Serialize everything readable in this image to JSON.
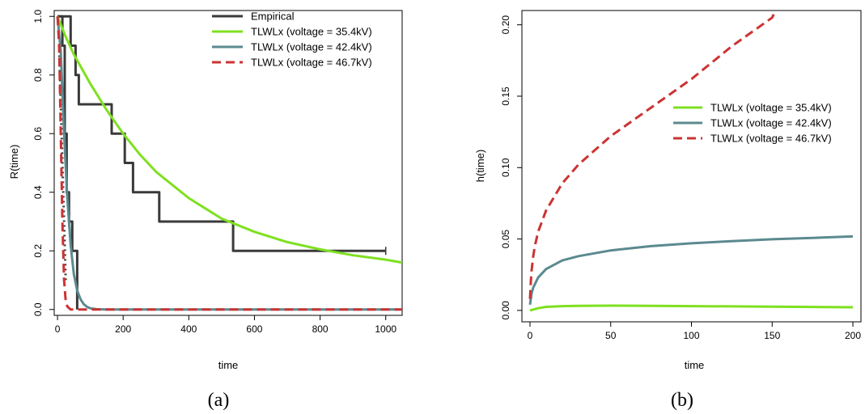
{
  "colors": {
    "empirical": "#3a3a3a",
    "v354": "#7fe020",
    "v424": "#5b8a8f",
    "v467": "#cc3333",
    "axis": "#000000"
  },
  "chart_data": [
    {
      "type": "line",
      "caption": "(a)",
      "xlabel": "time",
      "ylabel": "R(time)",
      "xlim": [
        -10,
        1050
      ],
      "ylim": [
        -0.02,
        1.02
      ],
      "xticks": [
        0,
        200,
        400,
        600,
        800,
        1000
      ],
      "yticks": [
        0.0,
        0.2,
        0.4,
        0.6,
        0.8,
        1.0
      ],
      "ytick_labels": [
        "0.0",
        "0.2",
        "0.4",
        "0.6",
        "0.8",
        "1.0"
      ],
      "legend_position": "top-right",
      "legend": [
        "Empirical",
        "TLWLx (voltage = 35.4kV)",
        "TLWLx (voltage = 42.4kV)",
        "TLWLx (voltage = 46.7kV)"
      ],
      "series": [
        {
          "name": "Empirical",
          "style": "step",
          "color": "#3a3a3a",
          "x": [
            0,
            40,
            40,
            55,
            55,
            65,
            65,
            75,
            75,
            165,
            165,
            205,
            205,
            230,
            230,
            310,
            310,
            535,
            535,
            1000
          ],
          "y": [
            1.0,
            1.0,
            0.9,
            0.9,
            0.8,
            0.8,
            0.7,
            0.7,
            0.7,
            0.7,
            0.6,
            0.6,
            0.5,
            0.5,
            0.4,
            0.4,
            0.3,
            0.3,
            0.2,
            0.2
          ]
        },
        {
          "name": "Empirical",
          "style": "step",
          "color": "#3a3a3a",
          "x": [
            0,
            15,
            15,
            22,
            22,
            28,
            28,
            35,
            35,
            45,
            45,
            55,
            55,
            60,
            60
          ],
          "y": [
            1.0,
            1.0,
            0.9,
            0.9,
            0.6,
            0.6,
            0.4,
            0.4,
            0.3,
            0.3,
            0.2,
            0.2,
            0.2,
            0.2,
            0.0
          ]
        },
        {
          "name": "Empirical",
          "style": "dotted",
          "color": "#3a3a3a",
          "x": [
            5,
            10,
            15,
            20,
            25
          ],
          "y": [
            0.9,
            0.7,
            0.5,
            0.3,
            0.1
          ]
        },
        {
          "name": "TLWLx (voltage = 35.4kV)",
          "style": "solid",
          "color": "#7fe020",
          "x": [
            0,
            25,
            50,
            75,
            100,
            150,
            200,
            250,
            300,
            400,
            500,
            600,
            700,
            800,
            900,
            1000,
            1050
          ],
          "y": [
            1.0,
            0.93,
            0.87,
            0.82,
            0.77,
            0.68,
            0.6,
            0.53,
            0.47,
            0.38,
            0.31,
            0.265,
            0.23,
            0.205,
            0.185,
            0.17,
            0.16
          ]
        },
        {
          "name": "TLWLx (voltage = 42.4kV)",
          "style": "solid",
          "color": "#5b8a8f",
          "x": [
            0,
            10,
            20,
            30,
            40,
            50,
            60,
            70,
            80,
            90,
            100,
            120,
            150,
            1050
          ],
          "y": [
            1.0,
            0.88,
            0.6,
            0.38,
            0.22,
            0.12,
            0.065,
            0.035,
            0.018,
            0.009,
            0.004,
            0.001,
            0.0,
            0.0
          ]
        },
        {
          "name": "TLWLx (voltage = 46.7kV)",
          "style": "dashed",
          "color": "#cc3333",
          "x": [
            0,
            5,
            10,
            15,
            20,
            25,
            30,
            40,
            60,
            1050
          ],
          "y": [
            1.0,
            0.9,
            0.6,
            0.3,
            0.1,
            0.03,
            0.01,
            0.0,
            0.0,
            0.0
          ]
        }
      ]
    },
    {
      "type": "line",
      "caption": "(b)",
      "xlabel": "time",
      "ylabel": "h(time)",
      "xlim": [
        -5,
        205
      ],
      "ylim": [
        -0.008,
        0.21
      ],
      "xticks": [
        0,
        50,
        100,
        150,
        200
      ],
      "yticks": [
        0.0,
        0.05,
        0.1,
        0.15,
        0.2
      ],
      "ytick_labels": [
        "0.00",
        "0.05",
        "0.10",
        "0.15",
        "0.20"
      ],
      "legend_position": "right",
      "legend": [
        "TLWLx (voltage = 35.4kV)",
        "TLWLx (voltage = 42.4kV)",
        "TLWLx (voltage = 46.7kV)"
      ],
      "series": [
        {
          "name": "TLWLx (voltage = 35.4kV)",
          "style": "solid",
          "color": "#7fe020",
          "x": [
            0,
            5,
            10,
            20,
            30,
            50,
            75,
            100,
            125,
            150,
            175,
            200
          ],
          "y": [
            0.0,
            0.0015,
            0.0025,
            0.003,
            0.0032,
            0.0033,
            0.0032,
            0.003,
            0.0028,
            0.0026,
            0.0024,
            0.0022
          ]
        },
        {
          "name": "TLWLx (voltage = 42.4kV)",
          "style": "solid",
          "color": "#5b8a8f",
          "x": [
            0,
            1,
            2,
            5,
            10,
            20,
            30,
            50,
            75,
            100,
            125,
            150,
            175,
            200
          ],
          "y": [
            0.004,
            0.012,
            0.016,
            0.023,
            0.029,
            0.035,
            0.038,
            0.042,
            0.045,
            0.047,
            0.0485,
            0.0498,
            0.0508,
            0.0518
          ]
        },
        {
          "name": "TLWLx (voltage = 46.7kV)",
          "style": "dashed",
          "color": "#cc3333",
          "x": [
            0,
            0.5,
            1,
            2,
            3,
            5,
            10,
            20,
            30,
            50,
            75,
            100,
            125,
            150,
            152
          ],
          "y": [
            0.008,
            0.02,
            0.028,
            0.038,
            0.045,
            0.055,
            0.07,
            0.089,
            0.102,
            0.122,
            0.142,
            0.162,
            0.185,
            0.205,
            0.21
          ]
        }
      ]
    }
  ]
}
